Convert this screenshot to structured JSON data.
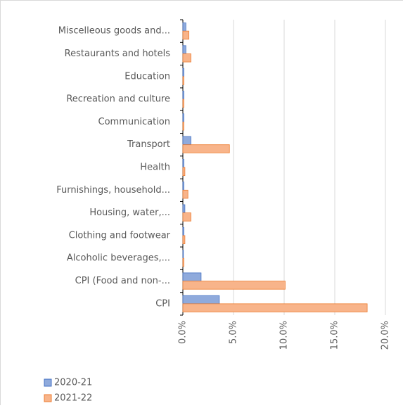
{
  "chart_data": {
    "type": "bar",
    "orientation": "horizontal",
    "categories": [
      "Miscelleous goods and...",
      "Restaurants and hotels",
      "Education",
      "Recreation and culture",
      "Communication",
      "Transport",
      "Health",
      "Furnishings, household...",
      "Housing, water,...",
      "Clothing and footwear",
      "Alcoholic beverages,...",
      "CPI (Food and non-...",
      "CPI"
    ],
    "series": [
      {
        "name": "2020-21",
        "color": "#8faadc",
        "values": [
          0.3,
          0.3,
          0.1,
          0.1,
          0.1,
          0.8,
          0.1,
          0.1,
          0.2,
          0.1,
          0.05,
          1.8,
          3.6
        ]
      },
      {
        "name": "2021-22",
        "color": "#f8b48a",
        "values": [
          0.6,
          0.8,
          0.1,
          0.1,
          0.1,
          4.6,
          0.2,
          0.5,
          0.8,
          0.2,
          0.1,
          10.1,
          18.2
        ]
      }
    ],
    "xlim": [
      0,
      20
    ],
    "xticks": [
      {
        "value": 0,
        "label": "0.0%"
      },
      {
        "value": 5,
        "label": "5.0%"
      },
      {
        "value": 10,
        "label": "10.0%"
      },
      {
        "value": 15,
        "label": "15.0%"
      },
      {
        "value": 20,
        "label": "20.0%"
      }
    ],
    "grid": true,
    "legend": "bottom-left"
  }
}
